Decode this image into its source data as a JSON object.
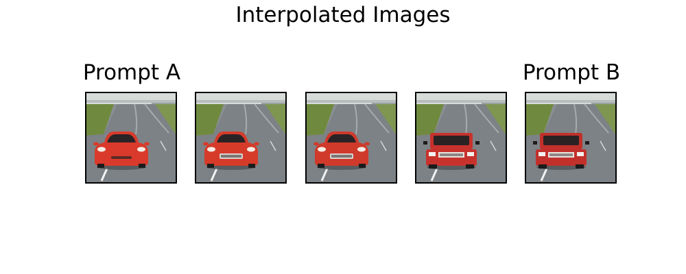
{
  "figure": {
    "title": "Interpolated Images"
  },
  "panels": [
    {
      "title": "Prompt A",
      "car_color": "#d93a2b",
      "car_style": "sports"
    },
    {
      "title": "",
      "car_color": "#d63b2a",
      "car_style": "hatch"
    },
    {
      "title": "",
      "car_color": "#cf3a2a",
      "car_style": "hatch"
    },
    {
      "title": "",
      "car_color": "#c8322d",
      "car_style": "suv"
    },
    {
      "title": "Prompt B",
      "car_color": "#c2302b",
      "car_style": "jeep"
    }
  ],
  "colors": {
    "road": "#7d8286",
    "grass": "#6f8a3e",
    "sky": "#d8dcd8",
    "lane": "#f2f2f2"
  }
}
